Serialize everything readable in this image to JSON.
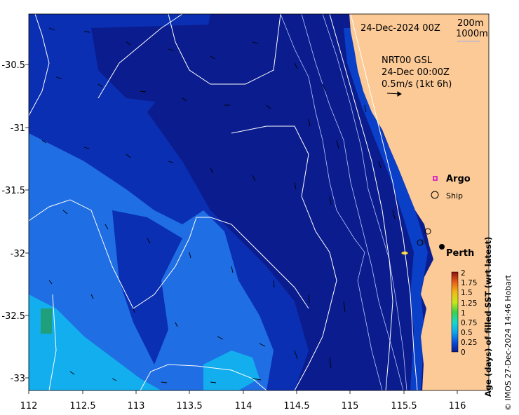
{
  "header": {
    "date_title": "24-Dec-2024 00Z",
    "contour_200": "200m",
    "contour_1000": "1000m"
  },
  "current_legend": {
    "line1": "NRT00 GSL",
    "line2": "24-Dec 00:00Z",
    "line3": "0.5m/s (1kt 6h)"
  },
  "markers": {
    "argo": "Argo",
    "ship": "Ship",
    "city": "Perth"
  },
  "axes": {
    "x_ticks": [
      "112",
      "112.5",
      "113",
      "113.5",
      "114",
      "114.5",
      "115",
      "115.5",
      "116"
    ],
    "y_ticks": [
      "-30.5",
      "-31",
      "-31.5",
      "-32",
      "-32.5",
      "-33"
    ]
  },
  "colorbar": {
    "title": "Age (days) of filled SST (wrt latest)",
    "ticks": [
      "2",
      "1.75",
      "1.5",
      "1.25",
      "1",
      "0.75",
      "0.5",
      "0.25",
      "0"
    ]
  },
  "credit": "© IMOS 27-Dec-2024 14:46 Hobart",
  "colors": {
    "land": "#fcca96",
    "age_0": "#0b1a8c",
    "age_low": "#0a2fb8",
    "age_mid": "#1f6fe6",
    "age_high": "#12b0ee"
  }
}
